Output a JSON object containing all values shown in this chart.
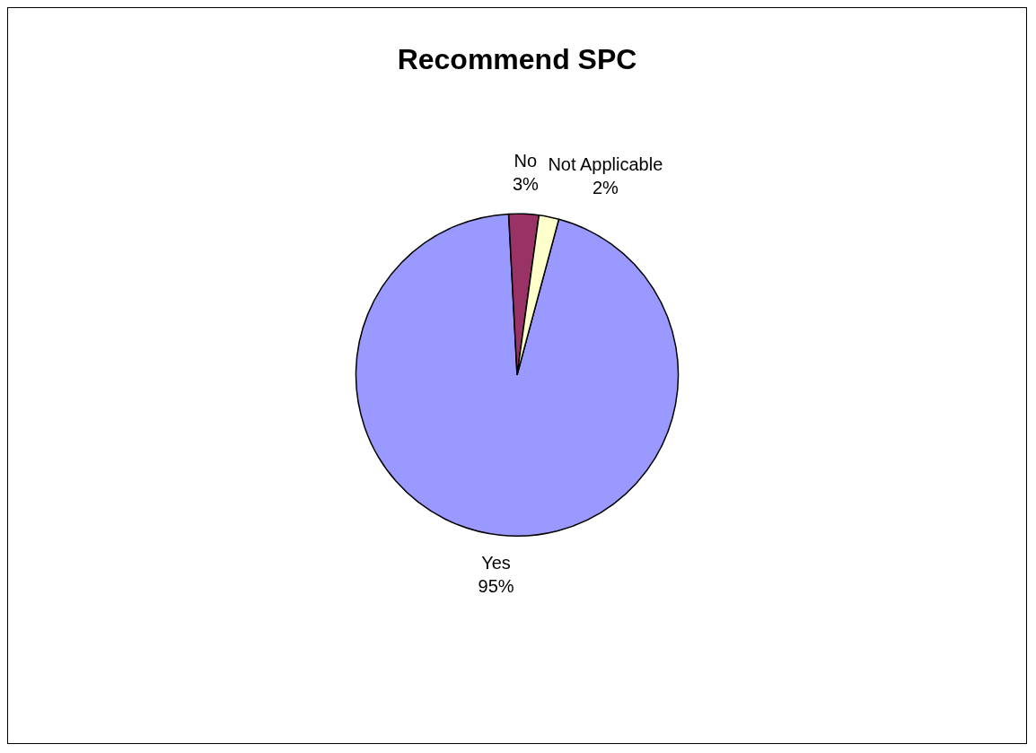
{
  "chart_data": {
    "type": "pie",
    "title": "Recommend SPC",
    "categories": [
      "Yes",
      "No",
      "Not Applicable"
    ],
    "values": [
      95,
      3,
      2
    ],
    "colors": [
      "#9999ff",
      "#993366",
      "#ffffcc"
    ],
    "value_labels": [
      "95%",
      "3%",
      "2%"
    ],
    "legend": false
  }
}
